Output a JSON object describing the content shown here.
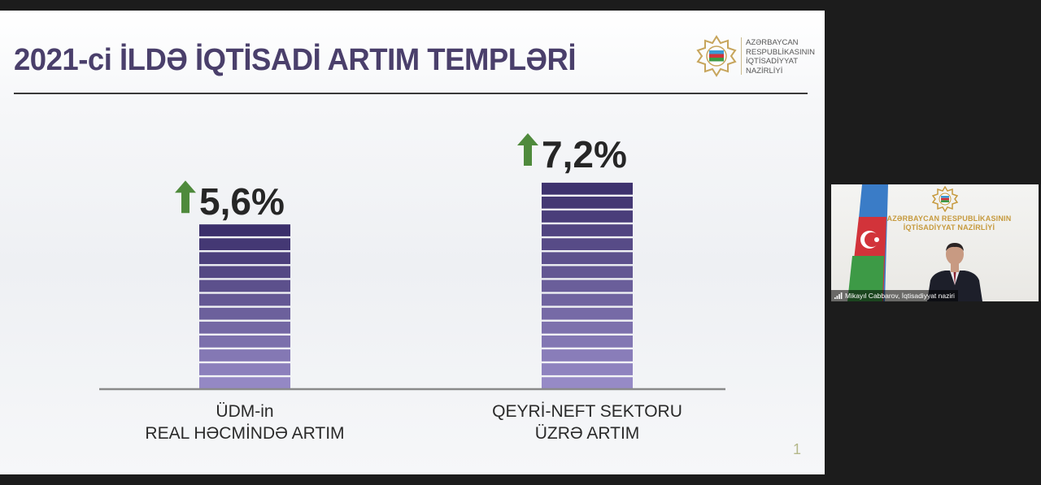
{
  "slide": {
    "title": "2021-ci İLDƏ İQTİSADİ ARTIM TEMPLƏRİ",
    "logo_lines": [
      "AZƏRBAYCAN",
      "RESPUBLİKASININ",
      "İQTİSADİYYAT",
      "NAZİRLİYİ"
    ],
    "page_number": "1"
  },
  "chart_data": {
    "type": "bar",
    "categories": [
      "ÜDM-in REAL HƏCMİNDƏ ARTIM",
      "QEYRİ-NEFT SEKTORU ÜZRƏ ARTIM"
    ],
    "category_lines": [
      [
        "ÜDM-in",
        "REAL HƏCMİNDƏ ARTIM"
      ],
      [
        "QEYRİ-NEFT SEKTORU",
        "ÜZRƏ ARTIM"
      ]
    ],
    "values": [
      5.6,
      7.2
    ],
    "data_labels": [
      "5,6%",
      "7,2%"
    ],
    "ylim": [
      0,
      8.3
    ],
    "arrow_color": "#4f8a3c",
    "bar_colors": [
      "#9b8fcb",
      "#3b2f6b"
    ]
  },
  "video": {
    "wall_text": [
      "AZƏRBAYCAN RESPUBLİKASININ",
      "İQTİSADİYYAT NAZİRLİYİ"
    ],
    "participant_label": "Mikayıl Cabbarov, İqtisadiyyat naziri"
  }
}
